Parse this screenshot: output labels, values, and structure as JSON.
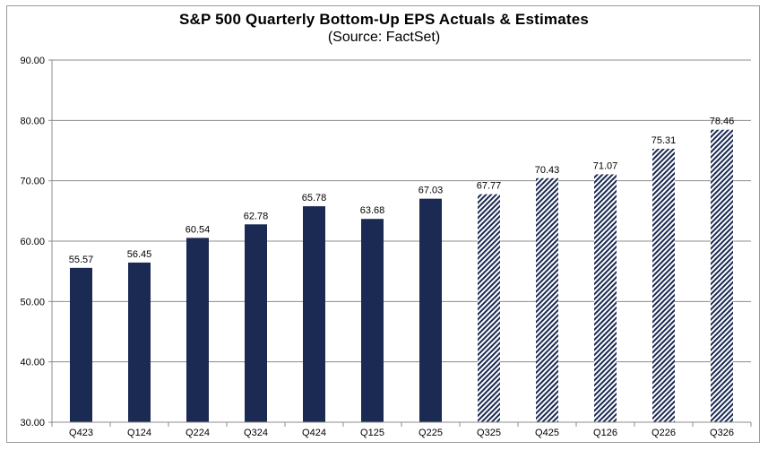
{
  "chart_data": {
    "type": "bar",
    "title": "S&P 500 Quarterly Bottom-Up EPS Actuals & Estimates",
    "subtitle": "(Source: FactSet)",
    "xlabel": "",
    "ylabel": "",
    "ylim": [
      30,
      90
    ],
    "yticks": [
      "30.00",
      "40.00",
      "50.00",
      "60.00",
      "70.00",
      "80.00",
      "90.00"
    ],
    "grid": true,
    "categories": [
      "Q423",
      "Q124",
      "Q224",
      "Q324",
      "Q424",
      "Q125",
      "Q225",
      "Q325",
      "Q425",
      "Q126",
      "Q226",
      "Q326"
    ],
    "values": [
      55.57,
      56.45,
      60.54,
      62.78,
      65.78,
      63.68,
      67.03,
      67.77,
      70.43,
      71.07,
      75.31,
      78.46
    ],
    "value_labels": [
      "55.57",
      "56.45",
      "60.54",
      "62.78",
      "65.78",
      "63.68",
      "67.03",
      "67.77",
      "70.43",
      "71.07",
      "75.31",
      "78.46"
    ],
    "kind": [
      "actual",
      "actual",
      "actual",
      "actual",
      "actual",
      "actual",
      "actual",
      "estimate",
      "estimate",
      "estimate",
      "estimate",
      "estimate"
    ],
    "colors": {
      "actual": "#1b2a52",
      "estimate": "#1b2a52"
    }
  }
}
